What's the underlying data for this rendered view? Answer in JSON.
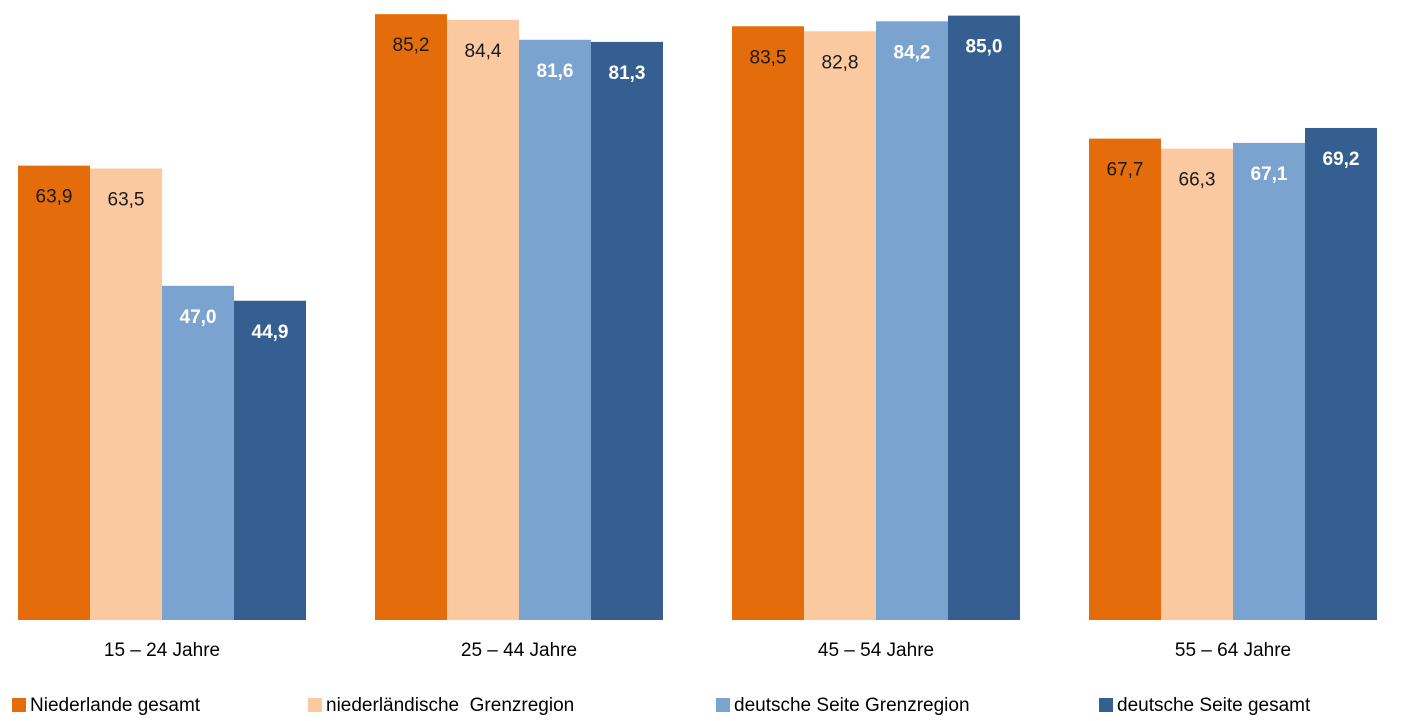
{
  "chart_data": {
    "type": "bar",
    "categories": [
      "15 – 24 Jahre",
      "25 – 44 Jahre",
      "45 – 54 Jahre",
      "55 – 64 Jahre"
    ],
    "series": [
      {
        "name": "Niederlande gesamt",
        "color": "#e46c0a",
        "values": [
          63.9,
          85.2,
          83.5,
          67.7
        ],
        "value_labels": [
          "63,9",
          "85,2",
          "83,5",
          "67,7"
        ]
      },
      {
        "name": "niederländische  Grenzregion",
        "color": "#fac9a0",
        "values": [
          63.5,
          84.4,
          82.8,
          66.3
        ],
        "value_labels": [
          "63,5",
          "84,4",
          "82,8",
          "66,3"
        ]
      },
      {
        "name": "deutsche Seite Grenzregion",
        "color": "#7ba3cf",
        "values": [
          47.0,
          81.6,
          84.2,
          67.1
        ],
        "value_labels": [
          "47,0",
          "81,6",
          "84,2",
          "67,1"
        ]
      },
      {
        "name": "deutsche Seite gesamt",
        "color": "#355f91",
        "values": [
          44.9,
          81.3,
          85.0,
          69.2
        ],
        "value_labels": [
          "44,9",
          "81,3",
          "85,0",
          "69,2"
        ]
      }
    ],
    "ylim": [
      0,
      86
    ],
    "legend": "bottom"
  }
}
